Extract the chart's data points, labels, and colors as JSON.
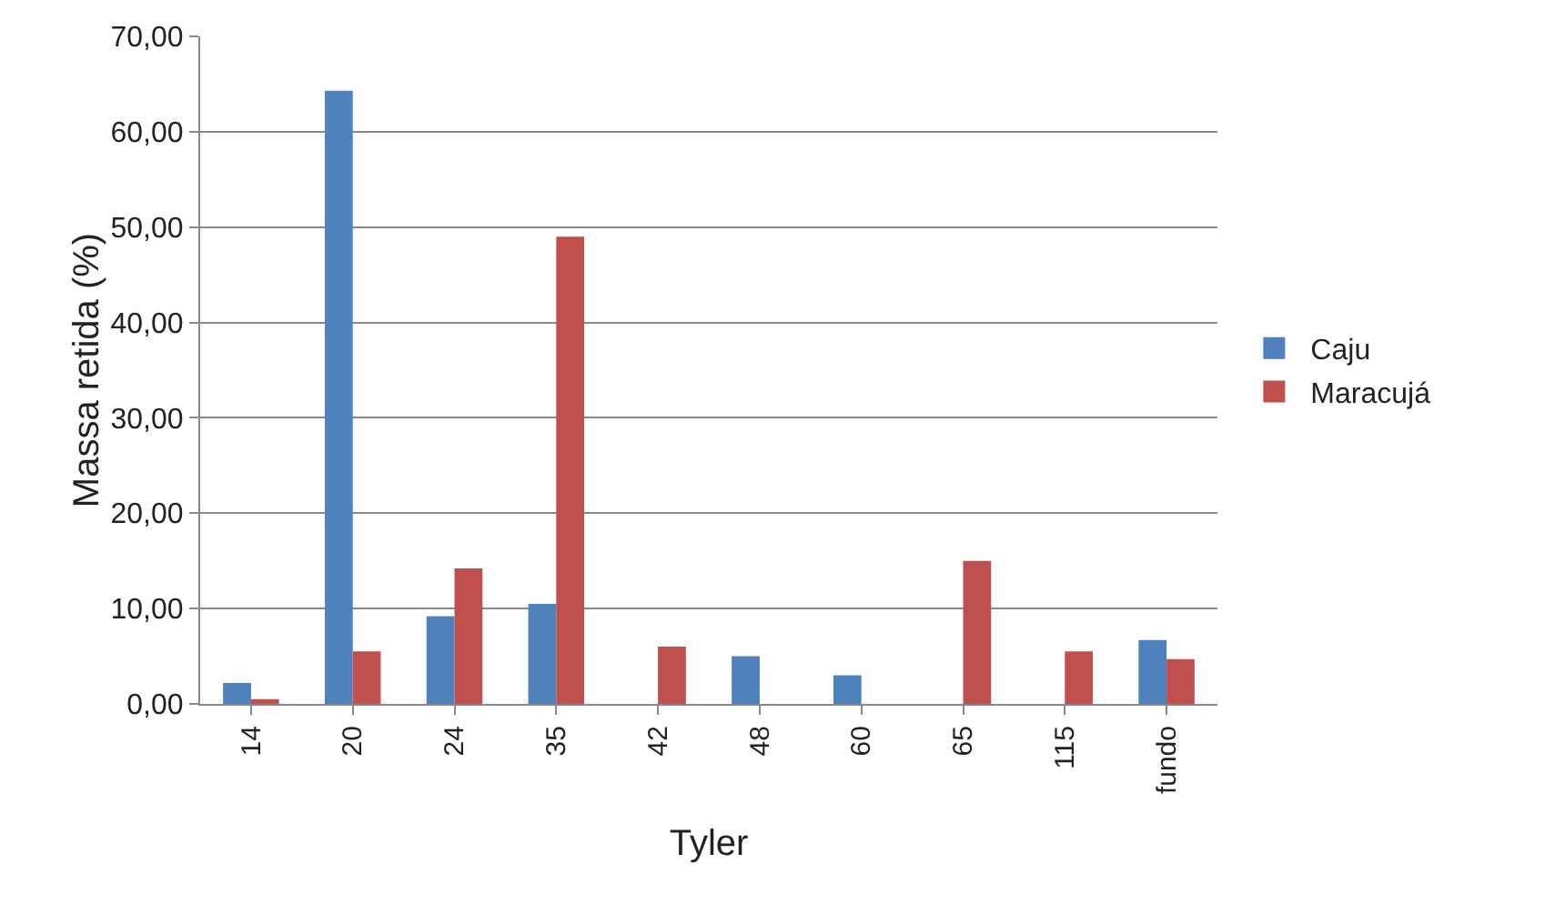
{
  "chart_data": {
    "type": "bar",
    "xlabel": "Tyler",
    "ylabel": "Massa retida (%)",
    "categories": [
      "14",
      "20",
      "24",
      "35",
      "42",
      "48",
      "60",
      "65",
      "115",
      "fundo"
    ],
    "series": [
      {
        "name": "Caju",
        "color": "#4f81bd",
        "values": [
          2.2,
          64.3,
          9.2,
          10.5,
          0,
          5.0,
          3.0,
          0,
          0,
          6.7
        ]
      },
      {
        "name": "Maracujá",
        "color": "#c0504d",
        "values": [
          0.5,
          5.5,
          14.2,
          49.0,
          6.0,
          0,
          0,
          15.0,
          5.5,
          4.7
        ]
      }
    ],
    "ylim": [
      0,
      70
    ],
    "yticks": [
      {
        "value": 0,
        "label": "0,00"
      },
      {
        "value": 10,
        "label": "10,00"
      },
      {
        "value": 20,
        "label": "20,00"
      },
      {
        "value": 30,
        "label": "30,00"
      },
      {
        "value": 40,
        "label": "40,00"
      },
      {
        "value": 50,
        "label": "50,00"
      },
      {
        "value": 60,
        "label": "60,00"
      },
      {
        "value": 70,
        "label": "70,00"
      }
    ],
    "grid": "y",
    "legend": "right"
  }
}
